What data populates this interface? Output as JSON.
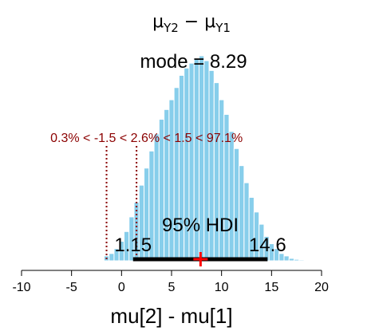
{
  "chart_data": {
    "type": "bar",
    "title_main": "μ",
    "title_sub1": "Y2",
    "title_minus": " − μ",
    "title_sub2": "Y1",
    "xlabel": "mu[2] - mu[1]",
    "xlim": [
      -10,
      20
    ],
    "xticks": [
      "-10",
      "-5",
      "0",
      "5",
      "10",
      "15",
      "20"
    ],
    "xtick_values": [
      -10,
      -5,
      0,
      5,
      10,
      15,
      20
    ],
    "bin_width": 0.5,
    "bins": [
      {
        "x": -1.5,
        "y": 0.002
      },
      {
        "x": -1.0,
        "y": 0.003
      },
      {
        "x": -0.5,
        "y": 0.005
      },
      {
        "x": 0.0,
        "y": 0.008
      },
      {
        "x": 0.5,
        "y": 0.012
      },
      {
        "x": 1.0,
        "y": 0.018
      },
      {
        "x": 1.5,
        "y": 0.024
      },
      {
        "x": 2.0,
        "y": 0.031
      },
      {
        "x": 2.5,
        "y": 0.038
      },
      {
        "x": 3.0,
        "y": 0.045
      },
      {
        "x": 3.5,
        "y": 0.052
      },
      {
        "x": 4.0,
        "y": 0.058
      },
      {
        "x": 4.5,
        "y": 0.062
      },
      {
        "x": 5.0,
        "y": 0.066
      },
      {
        "x": 5.5,
        "y": 0.071
      },
      {
        "x": 6.0,
        "y": 0.076
      },
      {
        "x": 6.5,
        "y": 0.079
      },
      {
        "x": 7.0,
        "y": 0.081
      },
      {
        "x": 7.5,
        "y": 0.083
      },
      {
        "x": 8.0,
        "y": 0.084
      },
      {
        "x": 8.5,
        "y": 0.082
      },
      {
        "x": 9.0,
        "y": 0.078
      },
      {
        "x": 9.5,
        "y": 0.073
      },
      {
        "x": 10.0,
        "y": 0.066
      },
      {
        "x": 10.5,
        "y": 0.06
      },
      {
        "x": 11.0,
        "y": 0.053
      },
      {
        "x": 11.5,
        "y": 0.046
      },
      {
        "x": 12.0,
        "y": 0.039
      },
      {
        "x": 12.5,
        "y": 0.032
      },
      {
        "x": 13.0,
        "y": 0.026
      },
      {
        "x": 13.5,
        "y": 0.02
      },
      {
        "x": 14.0,
        "y": 0.015
      },
      {
        "x": 14.5,
        "y": 0.01
      },
      {
        "x": 15.0,
        "y": 0.007
      },
      {
        "x": 15.5,
        "y": 0.005
      },
      {
        "x": 16.0,
        "y": 0.003
      },
      {
        "x": 16.5,
        "y": 0.002
      },
      {
        "x": 17.0,
        "y": 0.001
      },
      {
        "x": 17.5,
        "y": 0.0006
      },
      {
        "x": 18.0,
        "y": 0.0004
      }
    ],
    "ymax": 0.084,
    "mode_label": "mode = 8.29",
    "mean": 7.9,
    "rope": [
      -1.5,
      1.5
    ],
    "rope_label": "0.3% < -1.5 < 2.6% < 1.5 < 97.1%",
    "hdi": [
      1.15,
      14.6
    ],
    "hdi_label": "95% HDI",
    "hdi_low_label": "1.15",
    "hdi_high_label": "14.6",
    "colors": {
      "bar_fill": "#87ceeb",
      "bar_stroke": "#ffffff",
      "rope": "#8b0000",
      "hdi_bar": "#000000",
      "mean_marker": "#ff0000"
    }
  }
}
